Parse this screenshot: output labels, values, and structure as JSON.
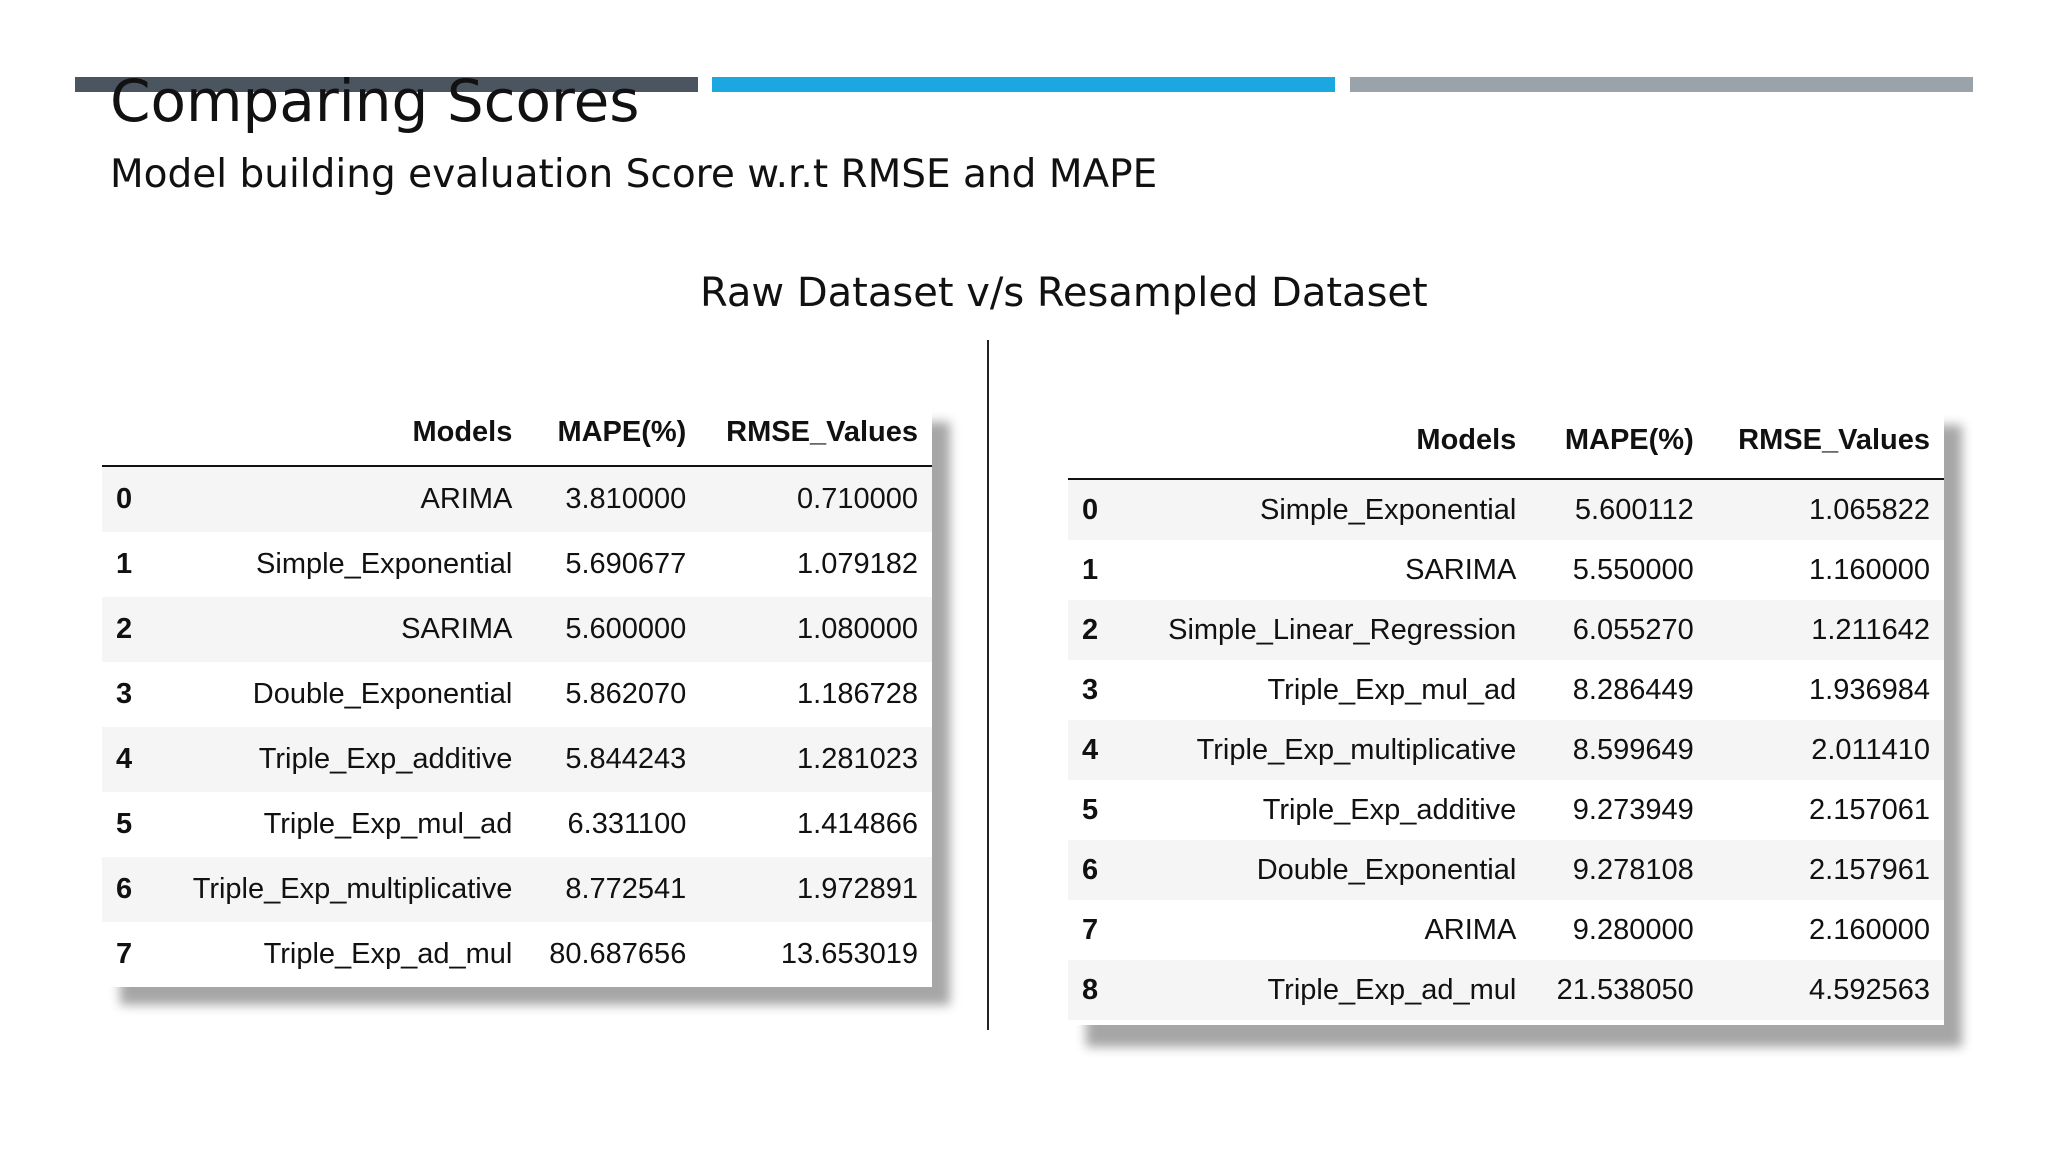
{
  "slide": {
    "title": "Comparing Scores",
    "subtitle": "Model building evaluation Score w.r.t RMSE and MAPE",
    "section_heading": "Raw Dataset v/s Resampled Dataset",
    "accent_colors": [
      "#4a5560",
      "#1ba7df",
      "#9aa3a9"
    ]
  },
  "left_table": {
    "headers": [
      "",
      "Models",
      "MAPE(%)",
      "RMSE_Values"
    ],
    "rows": [
      [
        "0",
        "ARIMA",
        "3.810000",
        "0.710000"
      ],
      [
        "1",
        "Simple_Exponential",
        "5.690677",
        "1.079182"
      ],
      [
        "2",
        "SARIMA",
        "5.600000",
        "1.080000"
      ],
      [
        "3",
        "Double_Exponential",
        "5.862070",
        "1.186728"
      ],
      [
        "4",
        "Triple_Exp_additive",
        "5.844243",
        "1.281023"
      ],
      [
        "5",
        "Triple_Exp_mul_ad",
        "6.331100",
        "1.414866"
      ],
      [
        "6",
        "Triple_Exp_multiplicative",
        "8.772541",
        "1.972891"
      ],
      [
        "7",
        "Triple_Exp_ad_mul",
        "80.687656",
        "13.653019"
      ]
    ]
  },
  "right_table": {
    "headers": [
      "",
      "Models",
      "MAPE(%)",
      "RMSE_Values"
    ],
    "rows": [
      [
        "0",
        "Simple_Exponential",
        "5.600112",
        "1.065822"
      ],
      [
        "1",
        "SARIMA",
        "5.550000",
        "1.160000"
      ],
      [
        "2",
        "Simple_Linear_Regression",
        "6.055270",
        "1.211642"
      ],
      [
        "3",
        "Triple_Exp_mul_ad",
        "8.286449",
        "1.936984"
      ],
      [
        "4",
        "Triple_Exp_multiplicative",
        "8.599649",
        "2.011410"
      ],
      [
        "5",
        "Triple_Exp_additive",
        "9.273949",
        "2.157061"
      ],
      [
        "6",
        "Double_Exponential",
        "9.278108",
        "2.157961"
      ],
      [
        "7",
        "ARIMA",
        "9.280000",
        "2.160000"
      ],
      [
        "8",
        "Triple_Exp_ad_mul",
        "21.538050",
        "4.592563"
      ]
    ]
  }
}
